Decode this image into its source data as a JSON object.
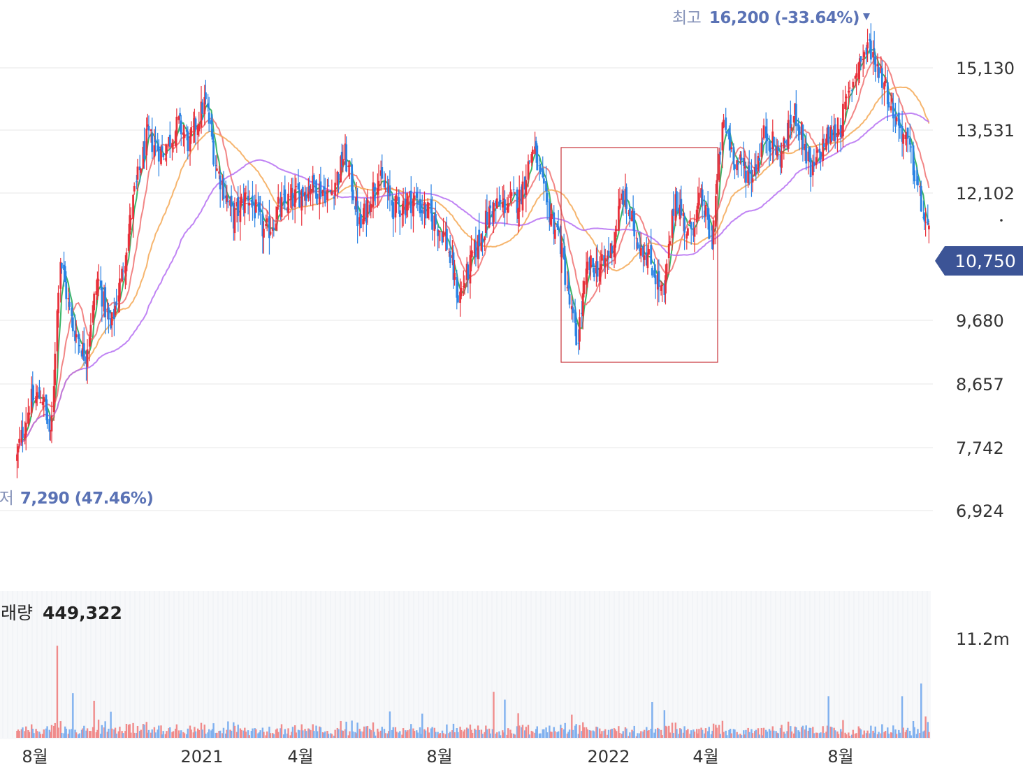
{
  "chart_data": {
    "type": "candlestick",
    "price_axis": {
      "ticks": [
        15130,
        13531,
        12102,
        9680,
        8657,
        7742,
        6924
      ],
      "tick_labels": [
        "15,130",
        "13,531",
        "12,102",
        "9,680",
        "8,657",
        "7,742",
        "6,924"
      ],
      "current_price": 10750,
      "current_price_label": "10,750"
    },
    "high_marker": {
      "prefix": "최고",
      "value_text": "16,200 (-33.64%)",
      "value": 16200,
      "change_pct": -33.64
    },
    "low_marker": {
      "prefix": "최저",
      "value_text": "7,290 (47.46%)",
      "value": 7290,
      "change_pct": 47.46
    },
    "time_axis": {
      "labels": [
        "8월",
        "2021",
        "4월",
        "8월",
        "2022",
        "4월",
        "8월"
      ]
    },
    "volume": {
      "label": "거래량",
      "value_text": "449,322",
      "value": 449322,
      "axis_label": "11.2m"
    },
    "price_path": [
      [
        "2020-07-20",
        7600
      ],
      [
        "2020-08-01",
        8400
      ],
      [
        "2020-08-12",
        8500
      ],
      [
        "2020-08-20",
        7800
      ],
      [
        "2020-08-28",
        10900
      ],
      [
        "2020-09-08",
        9600
      ],
      [
        "2020-09-20",
        9100
      ],
      [
        "2020-10-01",
        10500
      ],
      [
        "2020-10-12",
        9500
      ],
      [
        "2020-10-22",
        10500
      ],
      [
        "2020-11-02",
        12000
      ],
      [
        "2020-11-14",
        13400
      ],
      [
        "2020-11-28",
        13000
      ],
      [
        "2020-12-12",
        13700
      ],
      [
        "2020-12-22",
        13200
      ],
      [
        "2021-01-05",
        14300
      ],
      [
        "2021-01-15",
        12700
      ],
      [
        "2021-01-30",
        11600
      ],
      [
        "2021-02-12",
        12100
      ],
      [
        "2021-02-28",
        11300
      ],
      [
        "2021-03-12",
        11800
      ],
      [
        "2021-03-25",
        12000
      ],
      [
        "2021-04-10",
        12300
      ],
      [
        "2021-04-28",
        12100
      ],
      [
        "2021-05-10",
        13000
      ],
      [
        "2021-05-24",
        11400
      ],
      [
        "2021-06-08",
        12500
      ],
      [
        "2021-06-24",
        11800
      ],
      [
        "2021-07-10",
        12000
      ],
      [
        "2021-07-24",
        11700
      ],
      [
        "2021-08-08",
        11300
      ],
      [
        "2021-08-20",
        10100
      ],
      [
        "2021-09-02",
        10900
      ],
      [
        "2021-09-18",
        11800
      ],
      [
        "2021-10-02",
        11900
      ],
      [
        "2021-10-14",
        12000
      ],
      [
        "2021-10-26",
        13200
      ],
      [
        "2021-11-06",
        11900
      ],
      [
        "2021-11-18",
        11300
      ],
      [
        "2021-11-26",
        10200
      ],
      [
        "2021-12-04",
        9300
      ],
      [
        "2021-12-14",
        10700
      ],
      [
        "2021-12-28",
        10700
      ],
      [
        "2022-01-06",
        11200
      ],
      [
        "2022-01-14",
        12100
      ],
      [
        "2022-01-26",
        11300
      ],
      [
        "2022-02-08",
        10800
      ],
      [
        "2022-02-20",
        10100
      ],
      [
        "2022-03-02",
        12100
      ],
      [
        "2022-03-14",
        11300
      ],
      [
        "2022-03-26",
        12000
      ],
      [
        "2022-04-04",
        11100
      ],
      [
        "2022-04-14",
        13700
      ],
      [
        "2022-04-26",
        12800
      ],
      [
        "2022-05-10",
        12500
      ],
      [
        "2022-05-22",
        13500
      ],
      [
        "2022-06-04",
        12900
      ],
      [
        "2022-06-18",
        14000
      ],
      [
        "2022-07-02",
        12500
      ],
      [
        "2022-07-14",
        13300
      ],
      [
        "2022-07-28",
        13600
      ],
      [
        "2022-08-12",
        15200
      ],
      [
        "2022-08-24",
        15700
      ],
      [
        "2022-09-05",
        14800
      ],
      [
        "2022-09-16",
        13800
      ],
      [
        "2022-09-28",
        13100
      ],
      [
        "2022-10-10",
        11700
      ],
      [
        "2022-10-20",
        10900
      ],
      [
        "2022-10-27",
        10750
      ]
    ],
    "moving_average_colors": [
      "#1aa84e",
      "#f07070",
      "#f5a855",
      "#b56ef2"
    ],
    "colors": {
      "up": "#e8303a",
      "down": "#2a82e4",
      "volume_up": "#f08b8b",
      "volume_down": "#7fb0ef",
      "label_blue": "#5a72b5",
      "current_badge": "#3c5496"
    }
  }
}
